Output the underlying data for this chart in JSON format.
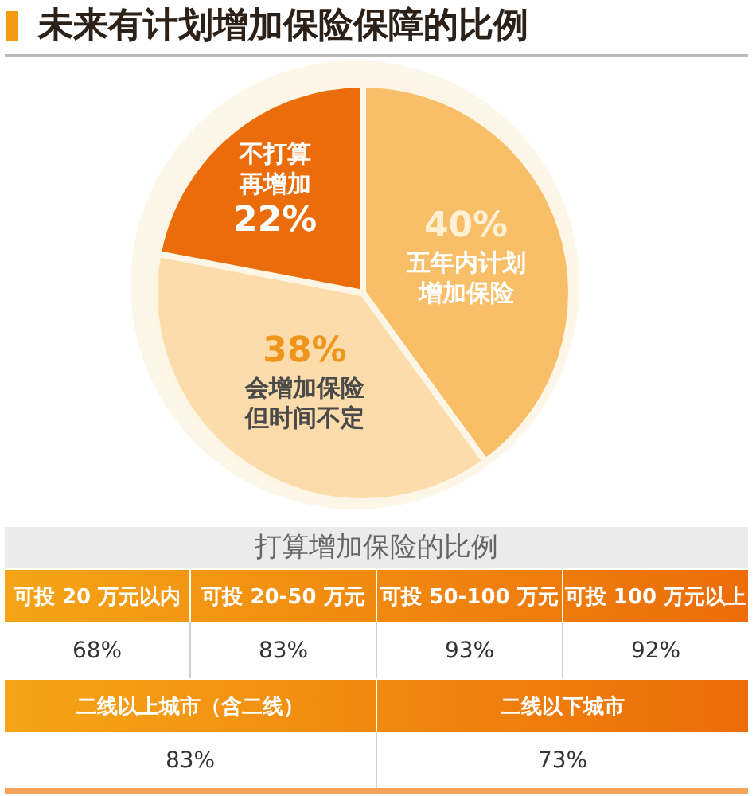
{
  "chart_data": [
    {
      "type": "pie",
      "title": "未来有计划增加保险保障的比例",
      "categories": [
        "五年内计划增加保险",
        "会增加保险但时间不定",
        "不打算再增加"
      ],
      "values": [
        40,
        38,
        22
      ],
      "colors": [
        "#f8be68",
        "#fcdcab",
        "#eb6c0a"
      ],
      "value_labels": [
        "40%",
        "38%",
        "22%"
      ]
    },
    {
      "type": "other",
      "title": "打算增加保险的比例",
      "categories": [
        "可投 20 万元以内",
        "可投 20-50 万元",
        "可投 50-100 万元",
        "可投 100 万元以上"
      ],
      "values": [
        68,
        83,
        93,
        92
      ],
      "value_labels": [
        "68%",
        "83%",
        "93%",
        "92%"
      ]
    },
    {
      "type": "other",
      "categories": [
        "二线以上城市（含二线）",
        "二线以下城市"
      ],
      "values": [
        83,
        73
      ],
      "value_labels": [
        "83%",
        "73%"
      ]
    }
  ]
}
